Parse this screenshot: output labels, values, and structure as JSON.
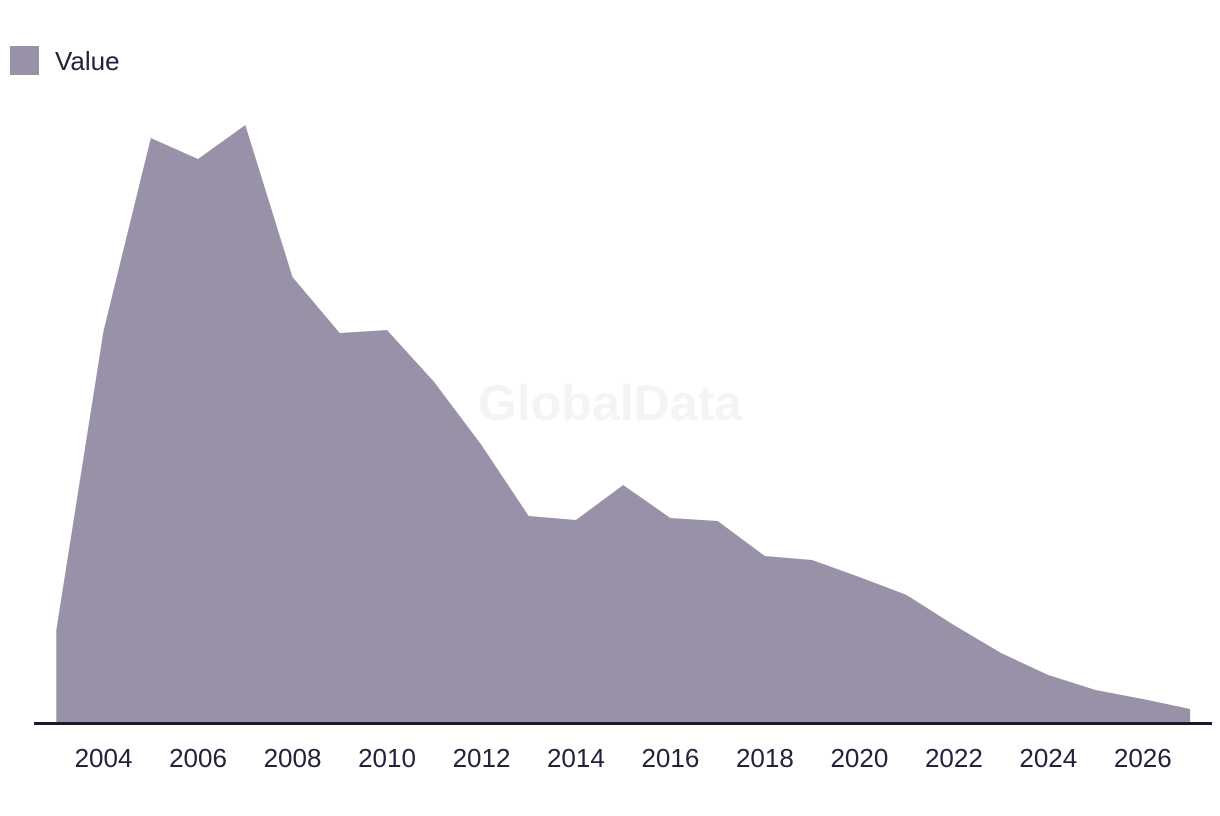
{
  "watermark_text": "GlobalData",
  "legend": {
    "label": "Value"
  },
  "colors": {
    "area_fill": "#9891a8",
    "axis_line": "#1a1a2f",
    "tick_text": "#22223c",
    "legend_text": "#22223c",
    "watermark_text": "#f4f4f4",
    "background": "#ffffff"
  },
  "chart_data": {
    "type": "area",
    "title": "",
    "xlabel": "",
    "ylabel": "",
    "grid": false,
    "y_axis_shown": false,
    "units": "arbitrary (no y-axis labels shown)",
    "legend_position": "top-left",
    "x": [
      2003,
      2004,
      2005,
      2006,
      2007,
      2008,
      2009,
      2010,
      2011,
      2012,
      2013,
      2014,
      2015,
      2016,
      2017,
      2018,
      2019,
      2020,
      2021,
      2022,
      2023,
      2024,
      2025,
      2026,
      2027
    ],
    "series": [
      {
        "name": "Value",
        "values": [
          92,
          391,
          584,
          563,
          597,
          445,
          389,
          392,
          340,
          277,
          206,
          202,
          237,
          204,
          201,
          166,
          162,
          145,
          127,
          97,
          69,
          47,
          32,
          23,
          13
        ]
      }
    ],
    "x_tick_labels": [
      "2004",
      "2006",
      "2008",
      "2010",
      "2012",
      "2014",
      "2016",
      "2018",
      "2020",
      "2022",
      "2024",
      "2026"
    ],
    "xlim": [
      2003,
      2027
    ],
    "ylim": [
      0,
      640
    ]
  }
}
